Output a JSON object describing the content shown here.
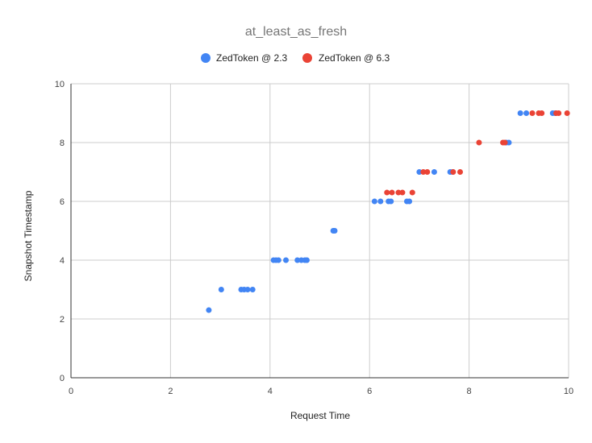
{
  "chart_data": {
    "type": "scatter",
    "title": "at_least_as_fresh",
    "xlabel": "Request Time",
    "ylabel": "Snapshot Timestamp",
    "xlim": [
      0,
      10
    ],
    "ylim": [
      0,
      10
    ],
    "x_ticks": [
      "0",
      "2",
      "4",
      "6",
      "8",
      "10"
    ],
    "y_ticks": [
      "0",
      "2",
      "4",
      "6",
      "8",
      "10"
    ],
    "grid": true,
    "legend_position": "top",
    "series": [
      {
        "name": "ZedToken @ 2.3",
        "color": "#4285f4",
        "points": [
          [
            2.77,
            2.3
          ],
          [
            3.02,
            3.0
          ],
          [
            3.42,
            3.0
          ],
          [
            3.48,
            3.0
          ],
          [
            3.55,
            3.0
          ],
          [
            3.65,
            3.0
          ],
          [
            4.07,
            4.0
          ],
          [
            4.12,
            4.0
          ],
          [
            4.17,
            4.0
          ],
          [
            4.32,
            4.0
          ],
          [
            4.55,
            4.0
          ],
          [
            4.63,
            4.0
          ],
          [
            4.7,
            4.0
          ],
          [
            4.74,
            4.0
          ],
          [
            5.27,
            5.0
          ],
          [
            5.3,
            5.0
          ],
          [
            6.1,
            6.0
          ],
          [
            6.22,
            6.0
          ],
          [
            6.38,
            6.0
          ],
          [
            6.43,
            6.0
          ],
          [
            6.75,
            6.0
          ],
          [
            6.8,
            6.0
          ],
          [
            7.0,
            7.0
          ],
          [
            7.3,
            7.0
          ],
          [
            7.62,
            7.0
          ],
          [
            7.67,
            7.0
          ],
          [
            8.75,
            8.0
          ],
          [
            8.8,
            8.0
          ],
          [
            9.03,
            9.0
          ],
          [
            9.15,
            9.0
          ],
          [
            9.68,
            9.0
          ],
          [
            9.73,
            9.0
          ]
        ]
      },
      {
        "name": "ZedToken @ 6.3",
        "color": "#ea4335",
        "points": [
          [
            6.35,
            6.3
          ],
          [
            6.45,
            6.3
          ],
          [
            6.58,
            6.3
          ],
          [
            6.66,
            6.3
          ],
          [
            6.86,
            6.3
          ],
          [
            7.08,
            7.0
          ],
          [
            7.16,
            7.0
          ],
          [
            7.68,
            7.0
          ],
          [
            7.82,
            7.0
          ],
          [
            8.2,
            8.0
          ],
          [
            8.68,
            8.0
          ],
          [
            8.72,
            8.0
          ],
          [
            9.27,
            9.0
          ],
          [
            9.4,
            9.0
          ],
          [
            9.46,
            9.0
          ],
          [
            9.75,
            9.0
          ],
          [
            9.8,
            9.0
          ],
          [
            9.97,
            9.0
          ]
        ]
      }
    ]
  }
}
